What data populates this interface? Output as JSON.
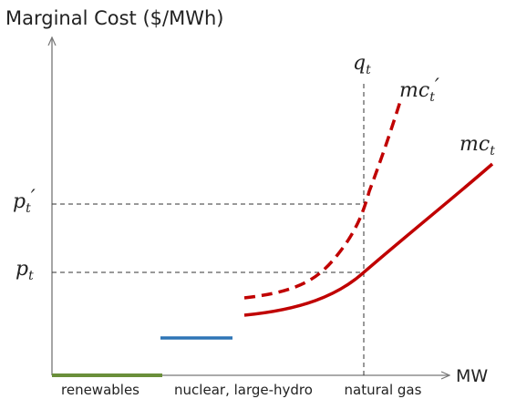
{
  "title": "Marginal Cost ($/MWh)",
  "x_axis_label": "MW",
  "quantity_label": {
    "base": "q",
    "sub": "t"
  },
  "curve_labels": [
    {
      "base": "mc",
      "sub": "t",
      "suffix": "′"
    },
    {
      "base": "mc",
      "sub": "t"
    }
  ],
  "price_labels": [
    {
      "base": "p",
      "sub": "t",
      "suffix": "′"
    },
    {
      "base": "p",
      "sub": "t"
    }
  ],
  "categories": [
    "renewables",
    "nuclear, large-hydro",
    "natural gas"
  ]
}
